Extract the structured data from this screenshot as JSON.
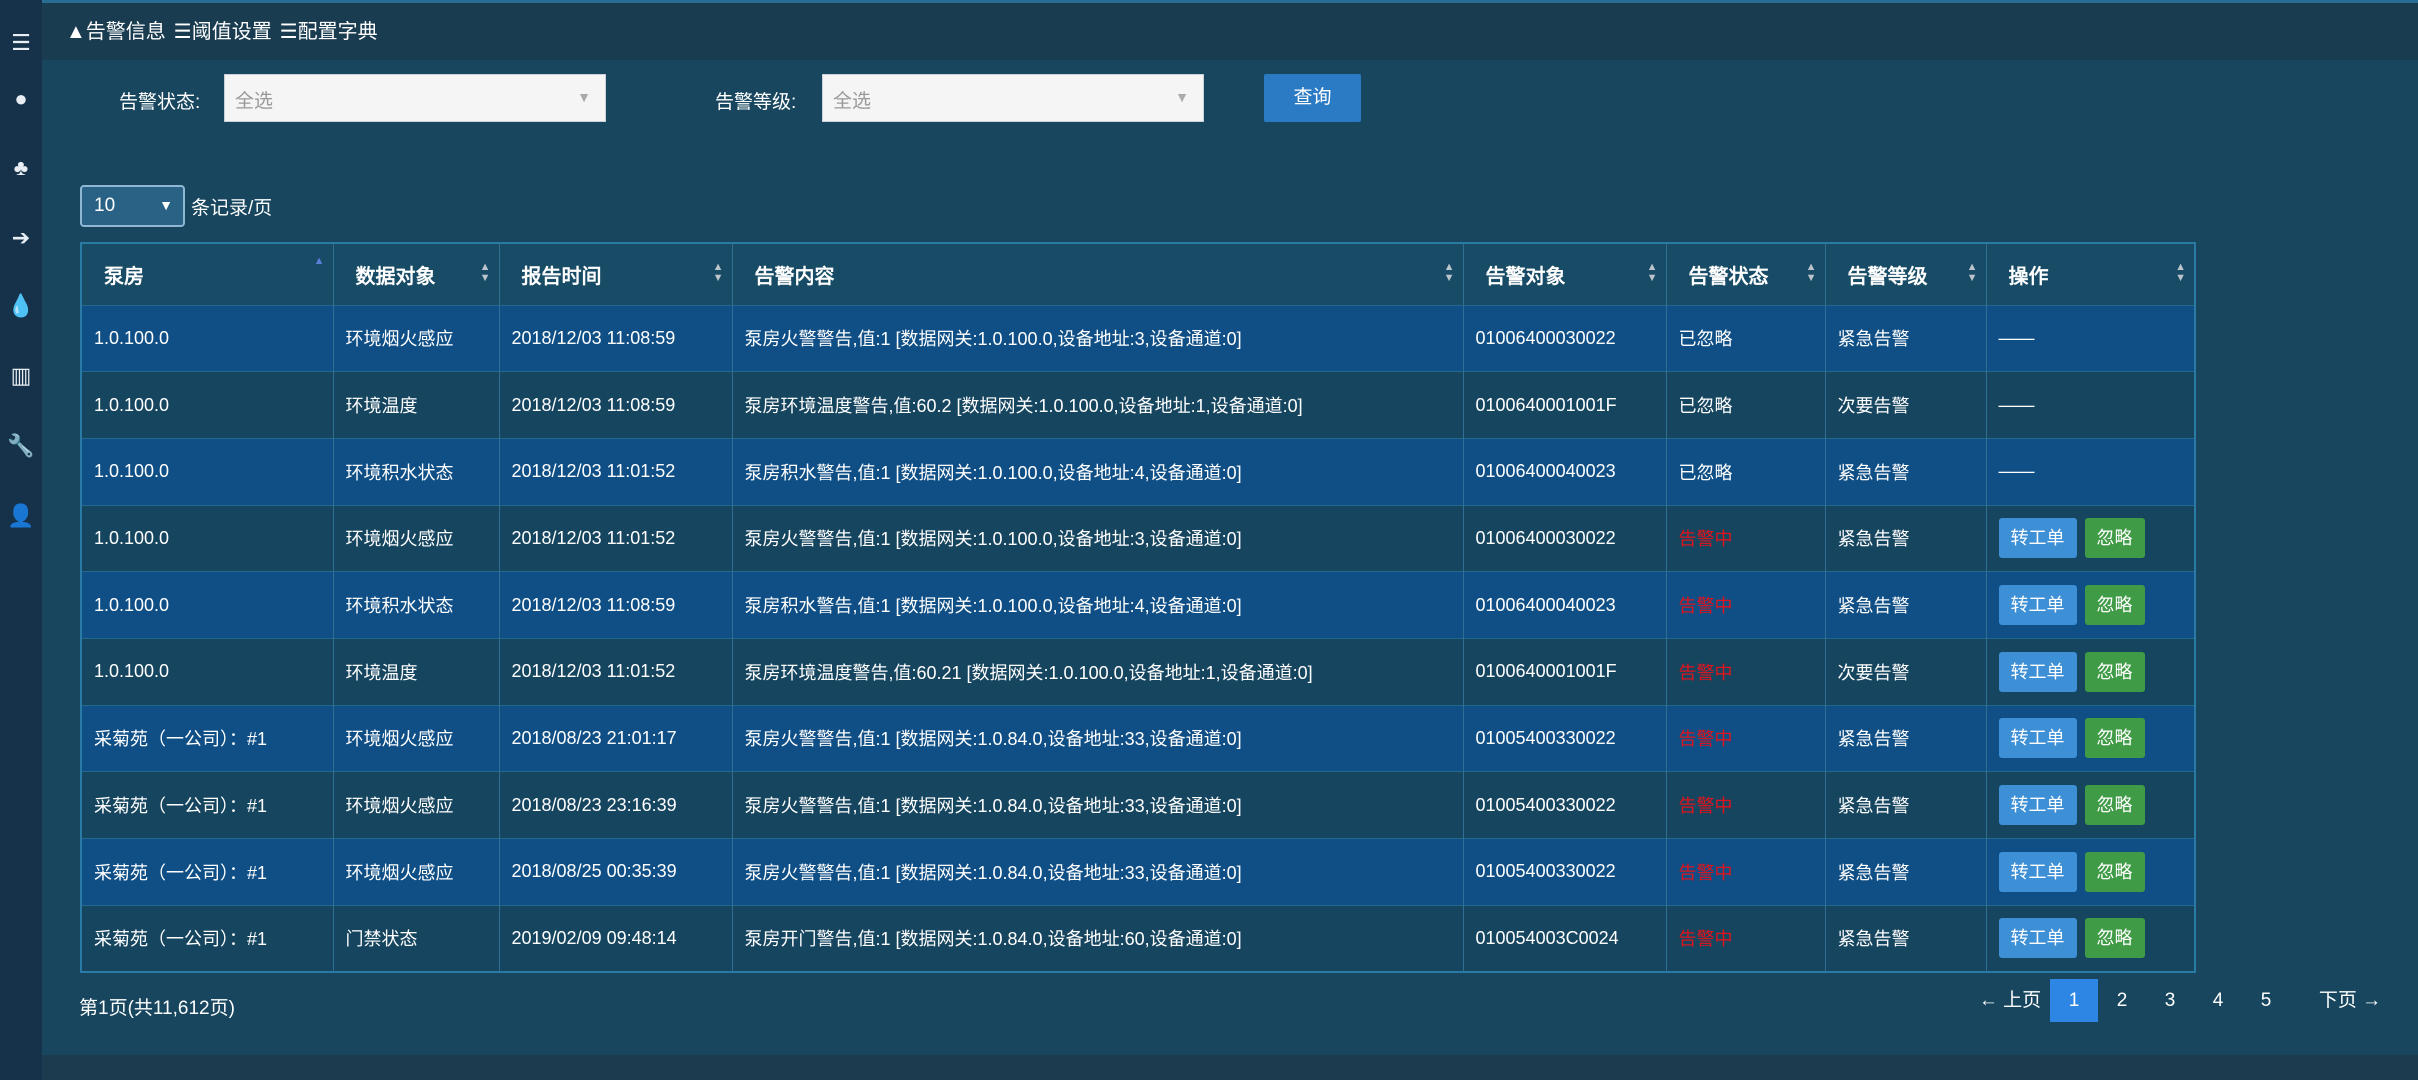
{
  "sidebar": {
    "icons": [
      "menu-icon",
      "globe-icon",
      "sitemap-icon",
      "sign-in-icon",
      "drop-icon",
      "bar-chart-icon",
      "wrench-icon",
      "user-icon"
    ]
  },
  "tabs": [
    {
      "icon": "warning-icon",
      "label": "告警信息"
    },
    {
      "icon": "list-icon",
      "label": "阈值设置"
    },
    {
      "icon": "list-icon",
      "label": "配置字典"
    }
  ],
  "filters": {
    "status_label": "告警状态:",
    "status_value": "全选",
    "level_label": "告警等级:",
    "level_value": "全选",
    "query_label": "查询"
  },
  "page_size": {
    "value": "10",
    "suffix": "条记录/页"
  },
  "table": {
    "headers": [
      "泵房",
      "数据对象",
      "报告时间",
      "告警内容",
      "告警对象",
      "告警状态",
      "告警等级",
      "操作"
    ],
    "sorted_column": "泵房",
    "sort_direction": "asc",
    "action_labels": {
      "transfer": "转工单",
      "ignore": "忽略",
      "none": "——"
    },
    "rows": [
      [
        "1.0.100.0",
        "环境烟火感应",
        "2018/12/03 11:08:59",
        "泵房火警警告,值:1 [数据网关:1.0.100.0,设备地址:3,设备通道:0]",
        "01006400030022",
        "已忽略",
        "紧急告警"
      ],
      [
        "1.0.100.0",
        "环境温度",
        "2018/12/03 11:08:59",
        "泵房环境温度警告,值:60.2 [数据网关:1.0.100.0,设备地址:1,设备通道:0]",
        "0100640001001F",
        "已忽略",
        "次要告警"
      ],
      [
        "1.0.100.0",
        "环境积水状态",
        "2018/12/03 11:01:52",
        "泵房积水警告,值:1 [数据网关:1.0.100.0,设备地址:4,设备通道:0]",
        "01006400040023",
        "已忽略",
        "紧急告警"
      ],
      [
        "1.0.100.0",
        "环境烟火感应",
        "2018/12/03 11:01:52",
        "泵房火警警告,值:1 [数据网关:1.0.100.0,设备地址:3,设备通道:0]",
        "01006400030022",
        "告警中",
        "紧急告警"
      ],
      [
        "1.0.100.0",
        "环境积水状态",
        "2018/12/03 11:08:59",
        "泵房积水警告,值:1 [数据网关:1.0.100.0,设备地址:4,设备通道:0]",
        "01006400040023",
        "告警中",
        "紧急告警"
      ],
      [
        "1.0.100.0",
        "环境温度",
        "2018/12/03 11:01:52",
        "泵房环境温度警告,值:60.21 [数据网关:1.0.100.0,设备地址:1,设备通道:0]",
        "0100640001001F",
        "告警中",
        "次要告警"
      ],
      [
        "采菊苑（一公司）：#1",
        "环境烟火感应",
        "2018/08/23 21:01:17",
        "泵房火警警告,值:1 [数据网关:1.0.84.0,设备地址:33,设备通道:0]",
        "01005400330022",
        "告警中",
        "紧急告警"
      ],
      [
        "采菊苑（一公司）：#1",
        "环境烟火感应",
        "2018/08/23 23:16:39",
        "泵房火警警告,值:1 [数据网关:1.0.84.0,设备地址:33,设备通道:0]",
        "01005400330022",
        "告警中",
        "紧急告警"
      ],
      [
        "采菊苑（一公司）：#1",
        "环境烟火感应",
        "2018/08/25 00:35:39",
        "泵房火警警告,值:1 [数据网关:1.0.84.0,设备地址:33,设备通道:0]",
        "01005400330022",
        "告警中",
        "紧急告警"
      ],
      [
        "采菊苑（一公司）：#1",
        "门禁状态",
        "2019/02/09 09:48:14",
        "泵房开门警告,值:1 [数据网关:1.0.84.0,设备地址:60,设备通道:0]",
        "010054003C0024",
        "告警中",
        "紧急告警"
      ]
    ]
  },
  "footer": {
    "page_info": "第1页(共11,612页)",
    "prev": "← 上页",
    "next": "下页 →",
    "pages": [
      "1",
      "2",
      "3",
      "4",
      "5"
    ],
    "current_page": "1"
  },
  "colors": {
    "active_status": "#e0141c",
    "transfer_button": "#3d8fd6",
    "ignore_button": "#3f9b45",
    "current_page": "#2d86e3"
  }
}
